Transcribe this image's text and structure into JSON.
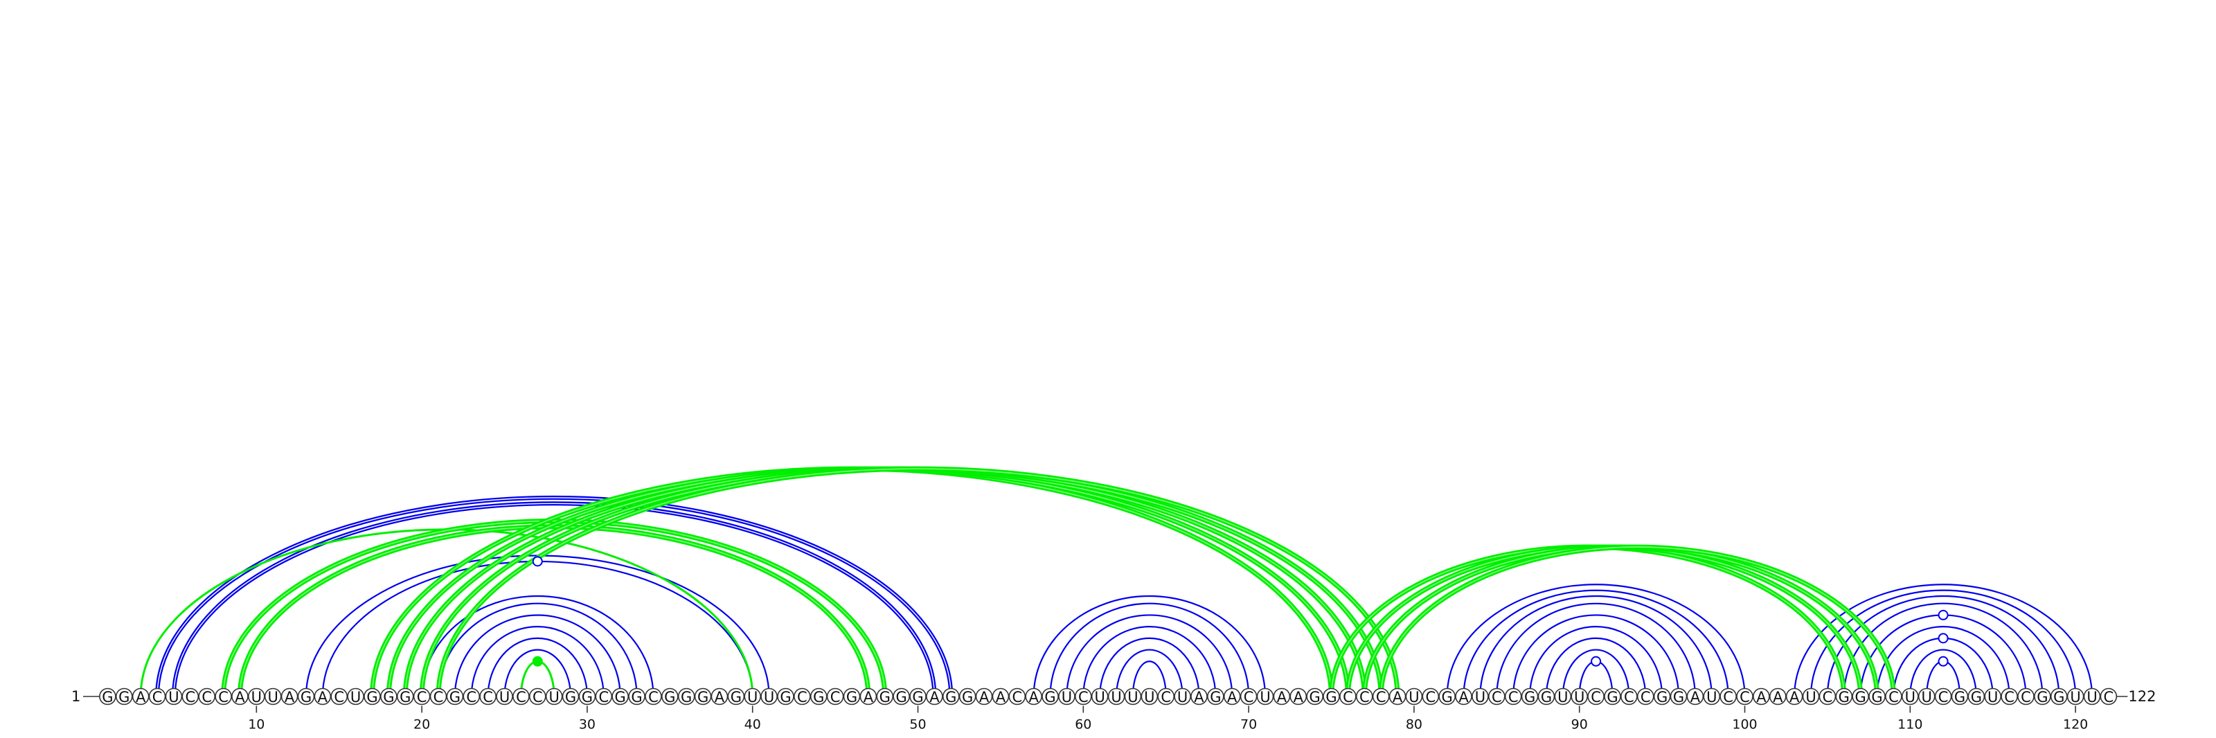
{
  "sequence": "GGACUCCCAUUAGACUGGGCCGCCUCCUGGCGGCGGGAGUUGCGCGAGGGAGGAACAGUCUUUUCUAGACUAAGGCCCAUCGAUCCGGUUCGCCGGAUCCAAAUCGGGCUUCGGUCCGGUUC",
  "start_label": "1",
  "end_label": "122",
  "ticks": [
    "10",
    "20",
    "30",
    "40",
    "50",
    "60",
    "70",
    "80",
    "90",
    "100",
    "110",
    "120"
  ],
  "colors": {
    "blue_pair": "#0000ee",
    "green_pair": "#00ee00",
    "outline": "#333333"
  },
  "chart_data": {
    "type": "arc-diagram",
    "sequence_length": 122,
    "blue_arcs": [
      [
        26,
        28
      ],
      [
        25,
        29
      ],
      [
        24,
        30
      ],
      [
        23,
        31
      ],
      [
        22,
        32
      ],
      [
        21,
        33
      ],
      [
        20,
        34
      ],
      [
        14,
        40
      ],
      [
        13,
        41
      ],
      [
        5,
        51
      ],
      [
        4,
        52
      ],
      [
        63,
        65
      ],
      [
        62,
        66
      ],
      [
        61,
        67
      ],
      [
        60,
        68
      ],
      [
        59,
        69
      ],
      [
        58,
        70
      ],
      [
        57,
        71
      ],
      [
        90,
        92
      ],
      [
        89,
        93
      ],
      [
        88,
        94
      ],
      [
        87,
        95
      ],
      [
        86,
        96
      ],
      [
        85,
        97
      ],
      [
        84,
        98
      ],
      [
        83,
        99
      ],
      [
        82,
        100
      ],
      [
        111,
        113
      ],
      [
        110,
        114
      ],
      [
        109,
        115
      ],
      [
        108,
        116
      ],
      [
        107,
        117
      ],
      [
        106,
        118
      ],
      [
        105,
        119
      ],
      [
        104,
        120
      ],
      [
        103,
        121
      ]
    ],
    "blue_double_arcs": [
      [
        4,
        52
      ],
      [
        5,
        51
      ]
    ],
    "green_arcs": [
      [
        26,
        28
      ],
      [
        3,
        40
      ],
      [
        8,
        48
      ],
      [
        9,
        47
      ],
      [
        17,
        75
      ],
      [
        18,
        76
      ],
      [
        19,
        77
      ],
      [
        20,
        78
      ],
      [
        21,
        79
      ],
      [
        75,
        106
      ],
      [
        76,
        107
      ],
      [
        77,
        108
      ],
      [
        78,
        109
      ]
    ],
    "open_markers": [
      [
        14,
        40
      ],
      [
        90,
        92
      ],
      [
        111,
        113
      ],
      [
        109,
        115
      ],
      [
        107,
        117
      ]
    ],
    "filled_markers": [
      [
        26,
        28
      ]
    ]
  }
}
